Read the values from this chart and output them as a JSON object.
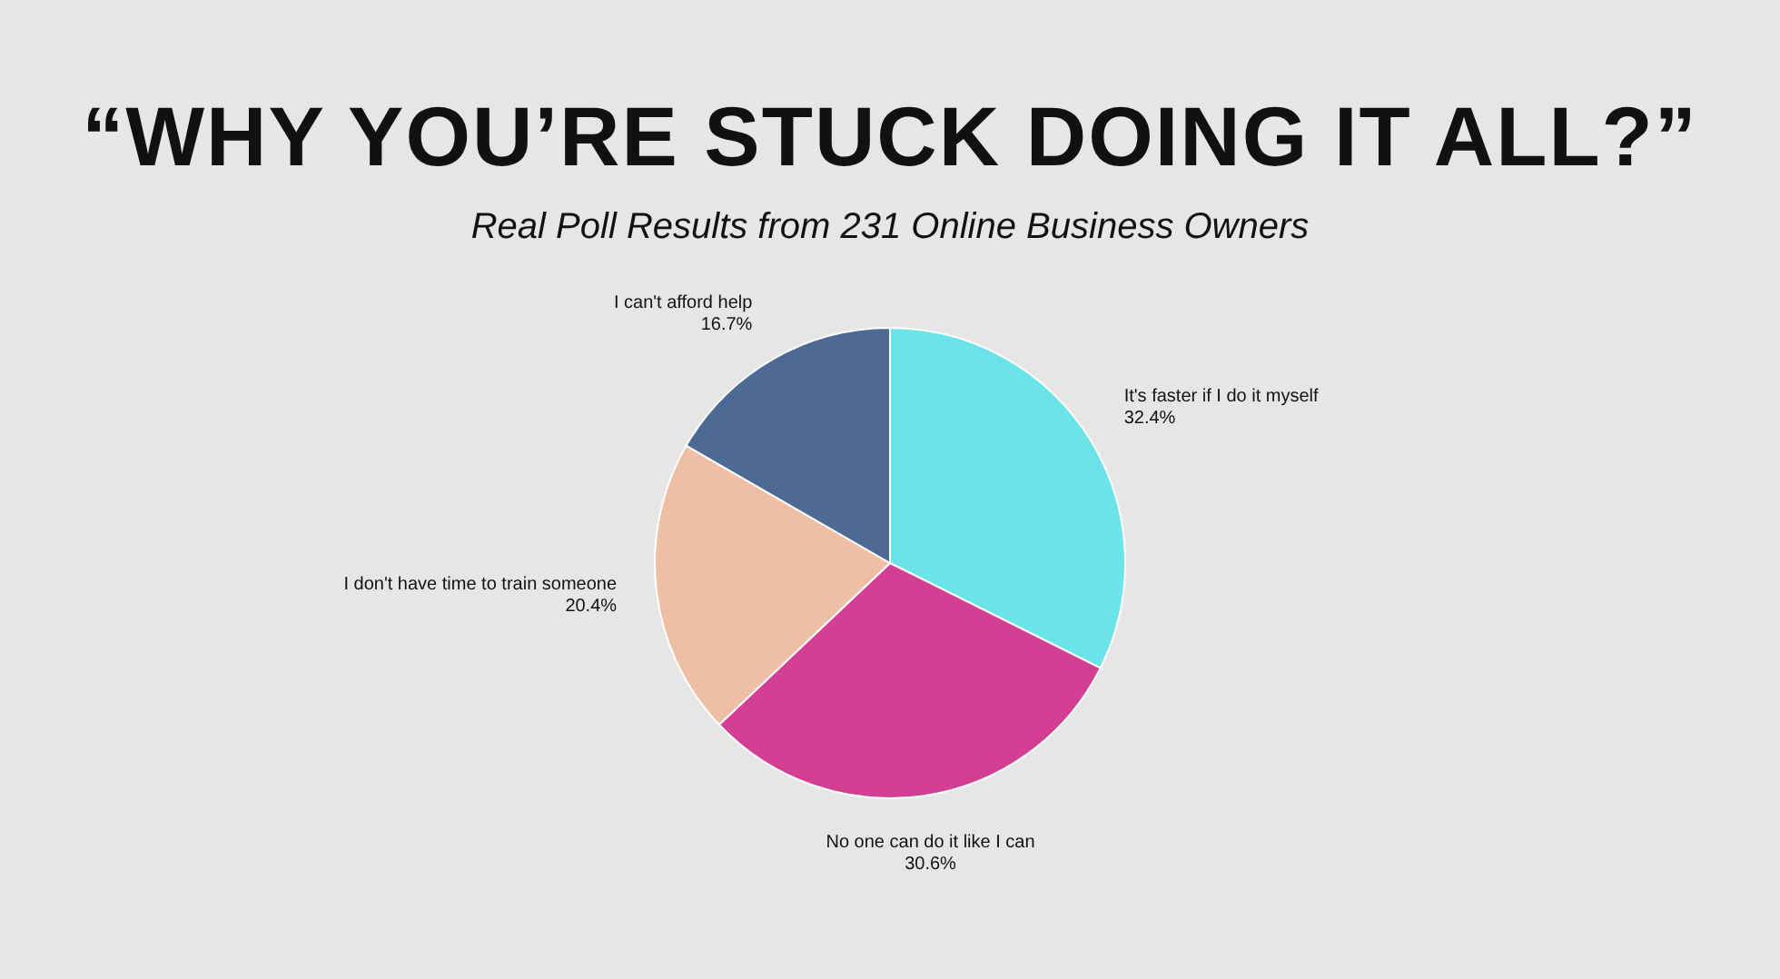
{
  "chart_data": {
    "type": "pie",
    "title": "“WHY YOU’RE STUCK DOING IT ALL?”",
    "subtitle": "Real Poll Results from 231 Online Business Owners",
    "categories": [
      "It's faster if I do it myself",
      "No one can do it like I can",
      "I don't have time to train someone",
      "I can't afford help"
    ],
    "values": [
      32.4,
      30.6,
      20.4,
      16.7
    ],
    "colors": [
      "#6ae4e8",
      "#d33f92",
      "#eebfa4",
      "#4d6a94"
    ],
    "value_labels": [
      "32.4%",
      "30.6%",
      "20.4%",
      "16.7%"
    ],
    "legend": false
  }
}
